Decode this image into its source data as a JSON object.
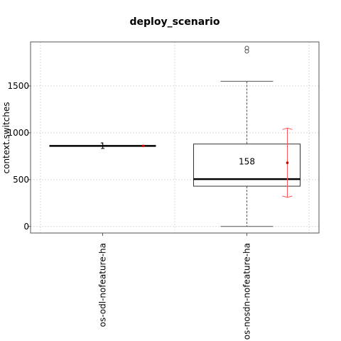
{
  "chart_data": {
    "type": "box",
    "title": "deploy_scenario",
    "xlabel": "",
    "ylabel": "context.switches",
    "ylim": [
      -70,
      1970
    ],
    "yticks": [
      0,
      500,
      1000,
      1500
    ],
    "grid": true,
    "categories": [
      "os-odl-nofeature-ha",
      "os-nosdn-nofeature-ha"
    ],
    "boxes": [
      {
        "category": "os-odl-nofeature-ha",
        "min": 860,
        "q1": 860,
        "median": 860,
        "q3": 860,
        "max": 860,
        "mean": 860,
        "mean_ci": [
          860,
          860
        ],
        "outliers": [],
        "count_label": "1"
      },
      {
        "category": "os-nosdn-nofeature-ha",
        "min": 0,
        "q1": 430,
        "median": 505,
        "q3": 880,
        "max": 1550,
        "mean": 680,
        "mean_ci": [
          310,
          1050
        ],
        "outliers": [
          1870,
          1905
        ],
        "count_label": "158"
      }
    ],
    "colors": {
      "box": "#333333",
      "whisker": "#555555",
      "mean": "#cc0000",
      "ci": "#ff5555",
      "grid": "#d9d9d9"
    }
  }
}
